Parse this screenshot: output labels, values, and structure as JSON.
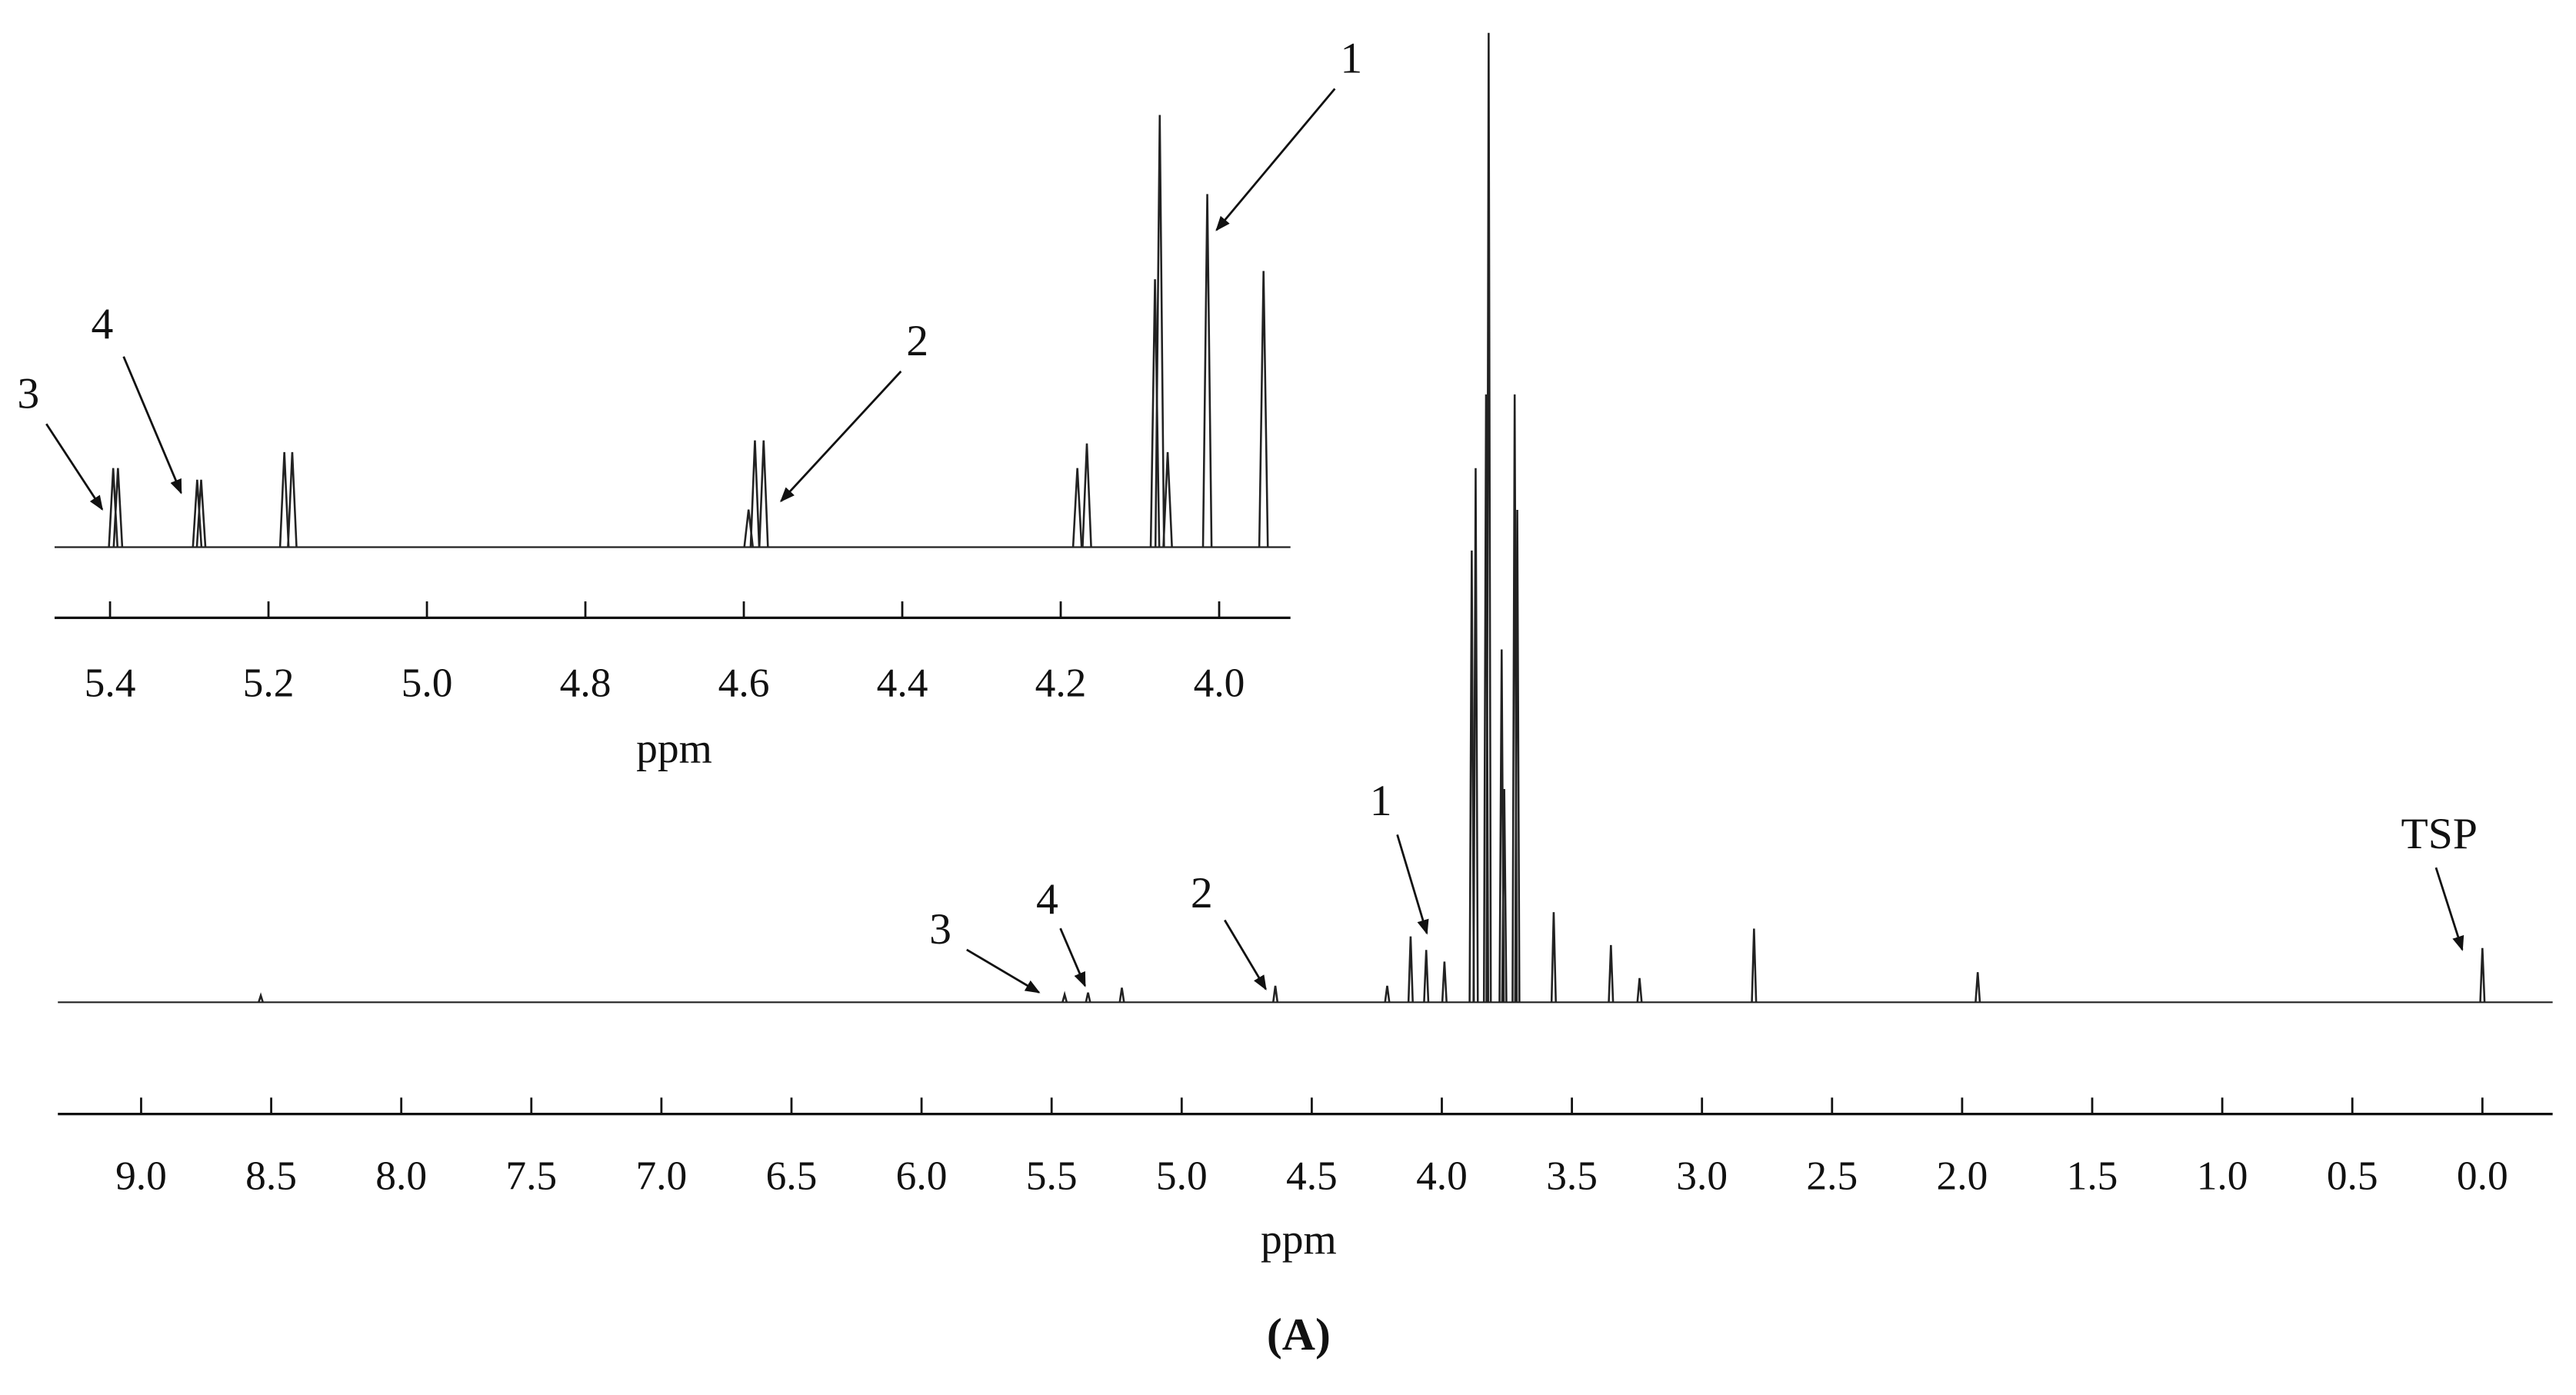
{
  "chart_data": [
    {
      "type": "spectrum",
      "xlabel": "ppm",
      "xlim": [
        9.32,
        -0.27
      ],
      "ylim": [
        0,
        100
      ],
      "xticks": [
        {
          "value": 9,
          "label": "9.0"
        },
        8.5,
        {
          "value": 8,
          "label": "8.0"
        },
        7.5,
        {
          "value": 7,
          "label": "7.0"
        },
        6.5,
        {
          "value": 6,
          "label": "6.0"
        },
        5.5,
        {
          "value": 5,
          "label": "5.0"
        },
        4.5,
        {
          "value": 4,
          "label": "4.0"
        },
        3.5,
        {
          "value": 3,
          "label": "3.0"
        },
        2.5,
        {
          "value": 2,
          "label": "2.0"
        },
        1.5,
        {
          "value": 1,
          "label": "1.0"
        },
        0.5,
        {
          "value": 0,
          "label": "0.0"
        }
      ],
      "x": [
        8.54,
        5.45,
        5.36,
        5.23,
        4.64,
        4.21,
        4.12,
        4.06,
        3.99,
        3.885,
        3.87,
        3.83,
        3.82,
        3.77,
        3.76,
        3.72,
        3.71,
        3.57,
        3.35,
        3.24,
        2.8,
        1.94,
        0
      ],
      "values": [
        0.7,
        0.8,
        1,
        1.5,
        1.7,
        1.7,
        6.8,
        5.4,
        4.2,
        46.6,
        55.1,
        62.7,
        100,
        36.4,
        22,
        62.7,
        50.8,
        9.3,
        5.9,
        2.5,
        7.6,
        3.1,
        5.6
      ],
      "color": "#222",
      "annotations": [
        "3",
        "4",
        "2",
        "1",
        "TSP"
      ]
    },
    {
      "type": "spectrum",
      "xlabel": "ppm",
      "xlim": [
        5.47,
        3.91
      ],
      "ylim": [
        0,
        100
      ],
      "xticks": [
        5.4,
        5.2,
        {
          "value": 5,
          "label": "5.0"
        },
        4.8,
        4.6,
        4.4,
        4.2,
        {
          "value": 4,
          "label": "4.0"
        }
      ],
      "x": [
        5.396,
        5.39,
        5.29,
        5.285,
        5.18,
        5.17,
        4.594,
        4.586,
        4.575,
        4.179,
        4.167,
        4.081,
        4.075,
        4.065,
        4.015,
        3.944
      ],
      "values": [
        18.3,
        18.3,
        15.6,
        15.6,
        22,
        22,
        8.7,
        24.7,
        24.7,
        18.3,
        24,
        62,
        100,
        22,
        81.7,
        63.9
      ],
      "color": "#222",
      "annotations": [
        "3",
        "4",
        "2",
        "1"
      ]
    }
  ],
  "caption": "(A)"
}
